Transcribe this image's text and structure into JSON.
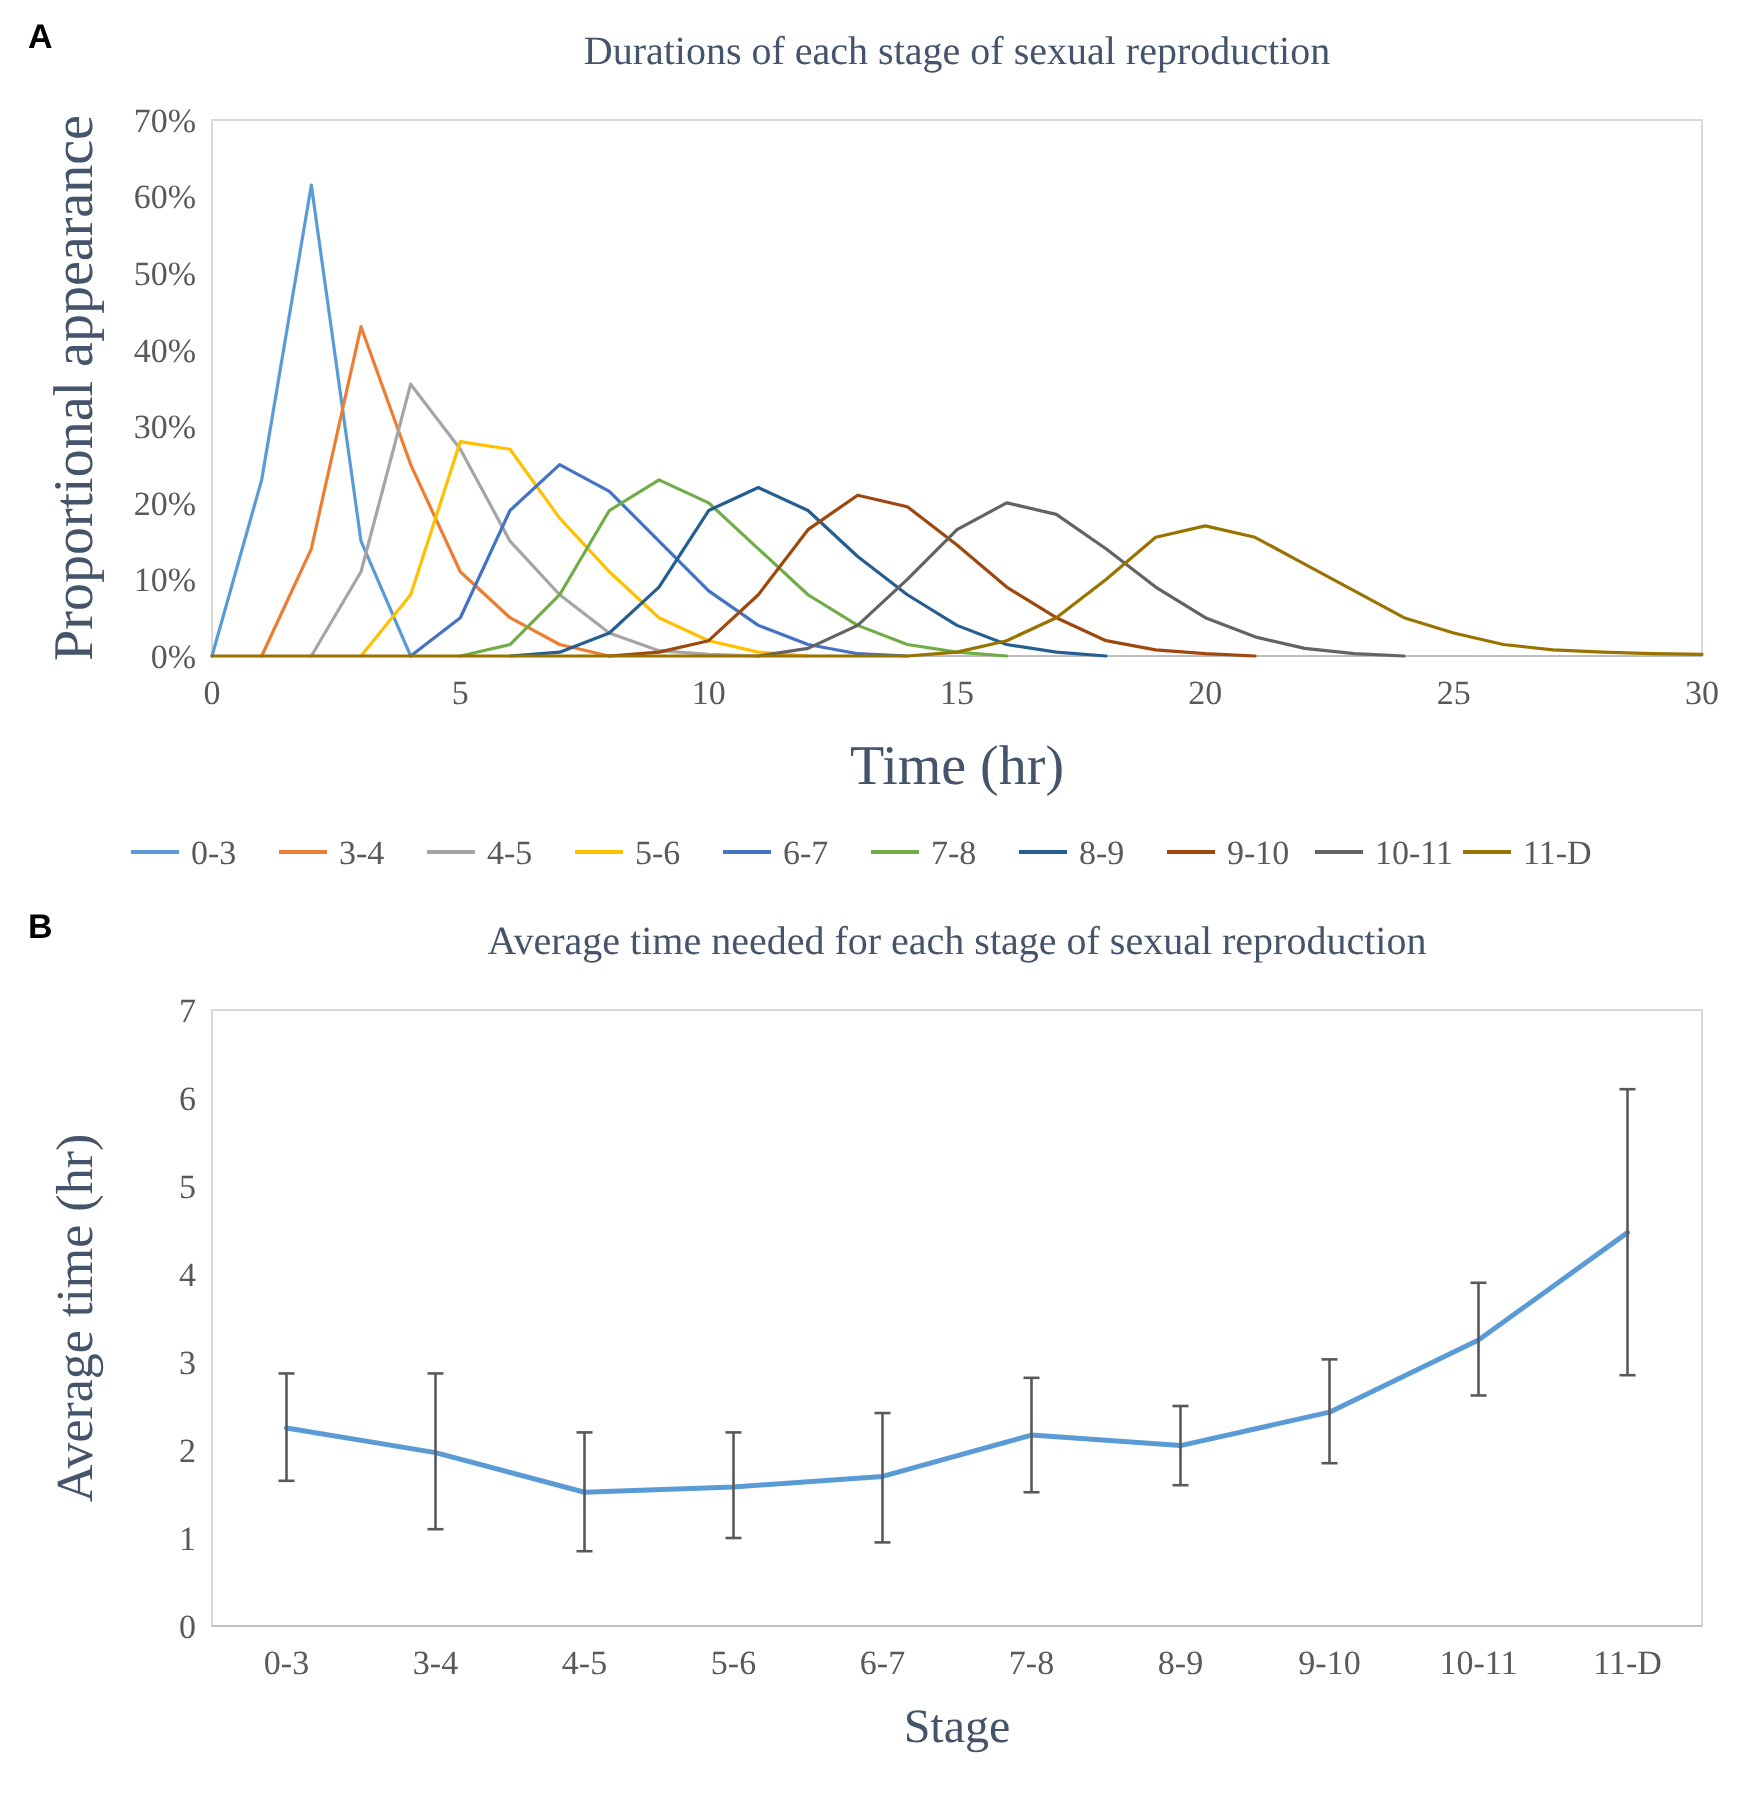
{
  "chart_data": [
    {
      "type": "line",
      "title": "Durations of each stage of sexual reproduction",
      "xlabel": "Time (hr)",
      "ylabel": "Proportional appearance",
      "annotations": [
        "A"
      ],
      "x": [
        0,
        1,
        2,
        3,
        4,
        5,
        6,
        7,
        8,
        9,
        10,
        11,
        12,
        13,
        14,
        15,
        16,
        17,
        18,
        19,
        20,
        21,
        22,
        23,
        24,
        25,
        26,
        27,
        28,
        29,
        30
      ],
      "xlim": [
        0,
        30
      ],
      "xticks": [
        0,
        5,
        10,
        15,
        20,
        25,
        30
      ],
      "ylim": [
        0,
        70
      ],
      "yticks": [
        {
          "value": 0,
          "label": "0%"
        },
        {
          "value": 10,
          "label": "10%"
        },
        {
          "value": 20,
          "label": "20%"
        },
        {
          "value": 30,
          "label": "30%"
        },
        {
          "value": 40,
          "label": "40%"
        },
        {
          "value": 50,
          "label": "50%"
        },
        {
          "value": 60,
          "label": "60%"
        },
        {
          "value": 70,
          "label": "70%"
        }
      ],
      "grid": false,
      "legend": "bottom",
      "marker": "none",
      "line_style": "solid",
      "series": [
        {
          "name": "0-3",
          "color": "#5b9bd5",
          "values": [
            0,
            23,
            61.5,
            15,
            0,
            null,
            null,
            null,
            null,
            null,
            null,
            null,
            null,
            null,
            null,
            null,
            null,
            null,
            null,
            null,
            null,
            null,
            null,
            null,
            null,
            null,
            null,
            null,
            null,
            null,
            null
          ]
        },
        {
          "name": "3-4",
          "color": "#ed7d31",
          "values": [
            null,
            0,
            14,
            43,
            25,
            11,
            5,
            1.5,
            0,
            null,
            null,
            null,
            null,
            null,
            null,
            null,
            null,
            null,
            null,
            null,
            null,
            null,
            null,
            null,
            null,
            null,
            null,
            null,
            null,
            null,
            null
          ]
        },
        {
          "name": "4-5",
          "color": "#a5a5a5",
          "values": [
            null,
            null,
            0,
            11,
            35.5,
            27,
            15,
            8,
            3,
            0.7,
            0.2,
            0,
            null,
            null,
            null,
            null,
            null,
            null,
            null,
            null,
            null,
            null,
            null,
            null,
            null,
            null,
            null,
            null,
            null,
            null,
            null
          ]
        },
        {
          "name": "5-6",
          "color": "#ffc000",
          "values": [
            null,
            null,
            null,
            0,
            8,
            28,
            27,
            18,
            11,
            5,
            2,
            0.5,
            0,
            null,
            null,
            null,
            null,
            null,
            null,
            null,
            null,
            null,
            null,
            null,
            null,
            null,
            null,
            null,
            null,
            null,
            null
          ]
        },
        {
          "name": "6-7",
          "color": "#4472c4",
          "values": [
            null,
            null,
            null,
            null,
            0,
            5,
            19,
            25,
            21.5,
            15,
            8.5,
            4,
            1.5,
            0.3,
            0,
            null,
            null,
            null,
            null,
            null,
            null,
            null,
            null,
            null,
            null,
            null,
            null,
            null,
            null,
            null,
            null
          ]
        },
        {
          "name": "7-8",
          "color": "#70ad47",
          "values": [
            null,
            null,
            null,
            null,
            null,
            0,
            1.5,
            8,
            19,
            23,
            20,
            14,
            8,
            4,
            1.5,
            0.5,
            0,
            null,
            null,
            null,
            null,
            null,
            null,
            null,
            null,
            null,
            null,
            null,
            null,
            null,
            null
          ]
        },
        {
          "name": "8-9",
          "color": "#255e91",
          "values": [
            null,
            null,
            null,
            null,
            null,
            null,
            0,
            0.5,
            3,
            9,
            19,
            22,
            19,
            13,
            8,
            4,
            1.5,
            0.5,
            0,
            null,
            null,
            null,
            null,
            null,
            null,
            null,
            null,
            null,
            null,
            null,
            null
          ]
        },
        {
          "name": "9-10",
          "color": "#9e480e",
          "values": [
            null,
            null,
            null,
            null,
            null,
            null,
            null,
            null,
            0,
            0.5,
            2,
            8,
            16.5,
            21,
            19.5,
            14.5,
            9,
            5,
            2,
            0.8,
            0.3,
            0,
            null,
            null,
            null,
            null,
            null,
            null,
            null,
            null,
            null
          ]
        },
        {
          "name": "10-11",
          "color": "#636363",
          "values": [
            null,
            null,
            null,
            null,
            null,
            null,
            null,
            null,
            null,
            null,
            null,
            0,
            1,
            4,
            10,
            16.5,
            20,
            18.5,
            14,
            9,
            5,
            2.5,
            1,
            0.3,
            0,
            null,
            null,
            null,
            null,
            null,
            null
          ]
        },
        {
          "name": "11-D",
          "color": "#997300",
          "values": [
            0,
            0,
            0,
            0,
            0,
            0,
            0,
            0,
            0,
            0,
            0,
            0,
            0,
            0,
            0,
            0.5,
            2,
            5,
            10,
            15.5,
            17,
            15.5,
            12,
            8.5,
            5,
            3,
            1.5,
            0.8,
            0.5,
            0.3,
            0.2
          ]
        }
      ]
    },
    {
      "type": "line",
      "title": "Average time needed for each stage of sexual reproduction",
      "xlabel": "Stage",
      "ylabel": "Average time (hr)",
      "annotations": [
        "B"
      ],
      "categories": [
        "0-3",
        "3-4",
        "4-5",
        "5-6",
        "6-7",
        "7-8",
        "8-9",
        "9-10",
        "10-11",
        "11-D"
      ],
      "ylim": [
        0,
        7
      ],
      "yticks": [
        0,
        1,
        2,
        3,
        4,
        5,
        6,
        7
      ],
      "grid": false,
      "legend": false,
      "marker": "none",
      "line_style": "solid",
      "series": [
        {
          "color": "#5b9bd5",
          "values": [
            2.25,
            1.97,
            1.52,
            1.58,
            1.7,
            2.17,
            2.05,
            2.43,
            3.25,
            4.47
          ],
          "errors": [
            [
              1.65,
              2.87
            ],
            [
              1.1,
              2.87
            ],
            [
              0.85,
              2.2
            ],
            [
              1.0,
              2.2
            ],
            [
              0.95,
              2.42
            ],
            [
              1.52,
              2.82
            ],
            [
              1.6,
              2.5
            ],
            [
              1.85,
              3.03
            ],
            [
              2.62,
              3.9
            ],
            [
              2.85,
              6.1
            ]
          ]
        }
      ]
    }
  ]
}
